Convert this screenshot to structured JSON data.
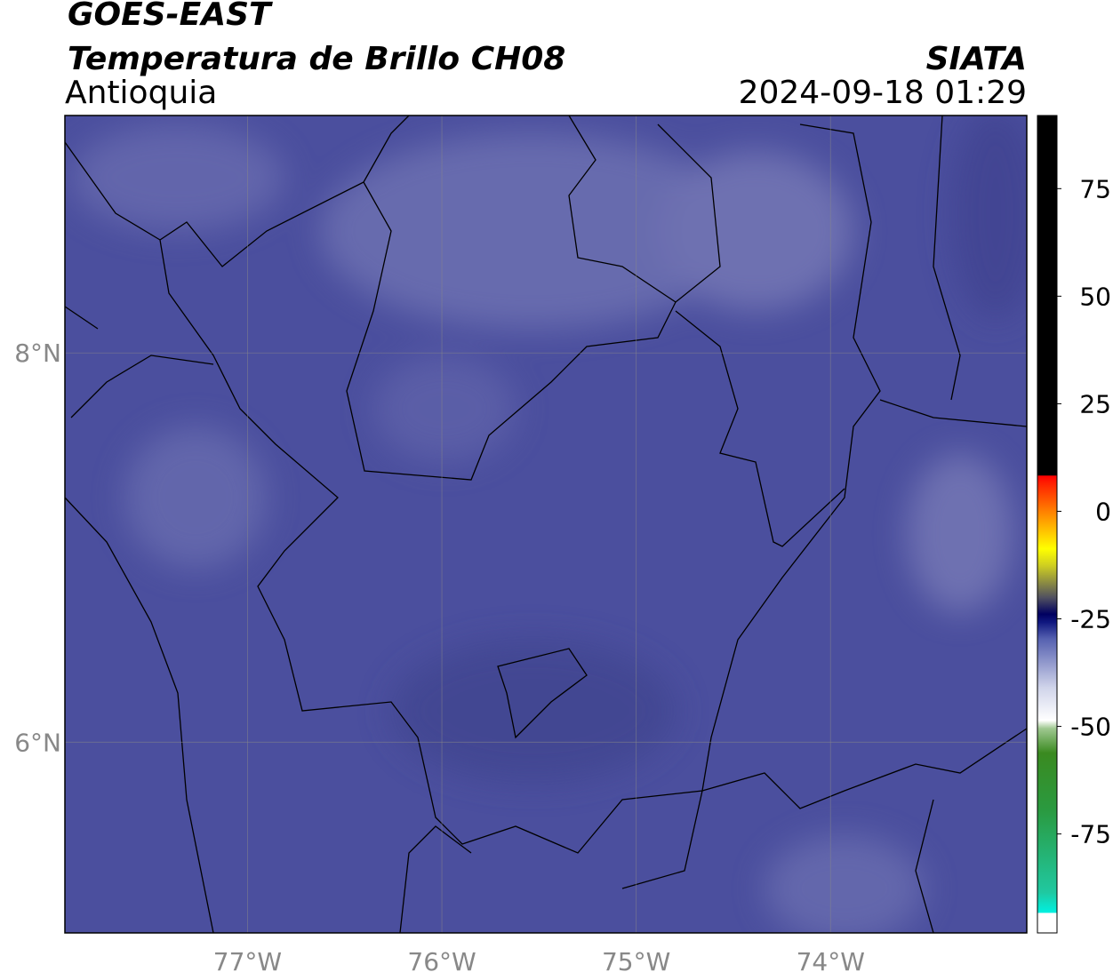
{
  "header": {
    "satellite": "GOES-EAST",
    "product": "Temperatura de Brillo CH08",
    "region": "Antioquia",
    "source": "SIATA",
    "datetime": "2024-09-18 01:29"
  },
  "map": {
    "xlim": [
      -77.94,
      -72.99
    ],
    "ylim": [
      5.02,
      9.22
    ],
    "xticks": [
      {
        "value": -77,
        "label": "77°W"
      },
      {
        "value": -76,
        "label": "76°W"
      },
      {
        "value": -75,
        "label": "75°W"
      },
      {
        "value": -74,
        "label": "74°W"
      }
    ],
    "yticks": [
      {
        "value": 6,
        "label": "6°N"
      },
      {
        "value": 8,
        "label": "8°N"
      }
    ],
    "grid": true
  },
  "colorbar": {
    "lim": [
      -98,
      92
    ],
    "ticks": [
      -75,
      -50,
      -25,
      0,
      25,
      50,
      75
    ]
  }
}
